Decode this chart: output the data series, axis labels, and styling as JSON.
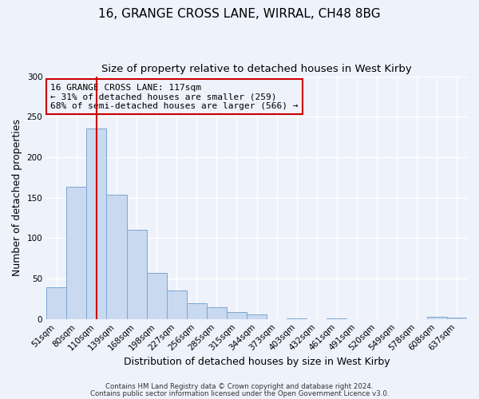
{
  "title": "16, GRANGE CROSS LANE, WIRRAL, CH48 8BG",
  "subtitle": "Size of property relative to detached houses in West Kirby",
  "xlabel": "Distribution of detached houses by size in West Kirby",
  "ylabel": "Number of detached properties",
  "bar_labels": [
    "51sqm",
    "80sqm",
    "110sqm",
    "139sqm",
    "168sqm",
    "198sqm",
    "227sqm",
    "256sqm",
    "285sqm",
    "315sqm",
    "344sqm",
    "373sqm",
    "403sqm",
    "432sqm",
    "461sqm",
    "491sqm",
    "520sqm",
    "549sqm",
    "578sqm",
    "608sqm",
    "637sqm"
  ],
  "bar_values": [
    39,
    163,
    235,
    154,
    110,
    57,
    35,
    19,
    15,
    9,
    6,
    0,
    1,
    0,
    1,
    0,
    0,
    0,
    0,
    3,
    2
  ],
  "bar_color": "#c9d9f0",
  "bar_edgecolor": "#7ba7d0",
  "ylim": [
    0,
    300
  ],
  "yticks": [
    0,
    50,
    100,
    150,
    200,
    250,
    300
  ],
  "marker_idx": 2,
  "marker_label_line1": "16 GRANGE CROSS LANE: 117sqm",
  "marker_label_line2": "← 31% of detached houses are smaller (259)",
  "marker_label_line3": "68% of semi-detached houses are larger (566) →",
  "marker_color": "#cc0000",
  "annotation_box_edgecolor": "#cc0000",
  "footer_line1": "Contains HM Land Registry data © Crown copyright and database right 2024.",
  "footer_line2": "Contains public sector information licensed under the Open Government Licence v3.0.",
  "bg_color": "#eef2fb",
  "title_fontsize": 11,
  "subtitle_fontsize": 9.5,
  "axis_label_fontsize": 9,
  "tick_fontsize": 7.5,
  "footer_fontsize": 6.2
}
